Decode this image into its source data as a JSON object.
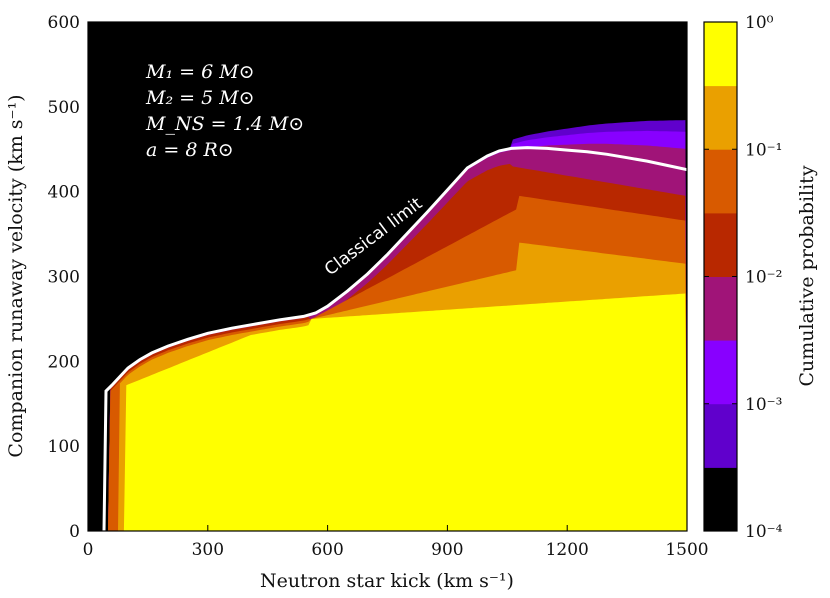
{
  "chart_data": {
    "type": "heatmap",
    "xlabel": "Neutron star kick (km s⁻¹)",
    "ylabel": "Companion runaway velocity (km s⁻¹)",
    "xlim": [
      0,
      1500
    ],
    "ylim": [
      0,
      600
    ],
    "x_ticks": [
      0,
      300,
      600,
      900,
      1200,
      1500
    ],
    "y_ticks": [
      0,
      100,
      200,
      300,
      400,
      500,
      600
    ],
    "annotations": [
      "M₁ = 6 M⊙",
      "M₂ = 5 M⊙",
      "M_NS = 1.4 M⊙",
      "a = 8 R⊙"
    ],
    "curve_label": "Classical limit",
    "classical_limit": {
      "x": [
        40,
        45,
        60,
        80,
        100,
        130,
        160,
        200,
        250,
        300,
        360,
        420,
        480,
        540,
        570,
        600,
        650,
        700,
        750,
        800,
        850,
        900,
        950,
        1000,
        1030,
        1060,
        1100,
        1150,
        1200,
        1250,
        1300,
        1350,
        1400,
        1450,
        1500
      ],
      "y": [
        0,
        165,
        172,
        182,
        192,
        202,
        210,
        218,
        226,
        233,
        239,
        244,
        249,
        253,
        257,
        265,
        283,
        303,
        326,
        351,
        376,
        402,
        428,
        442,
        448,
        451,
        452,
        451,
        449,
        447,
        444,
        440,
        436,
        431,
        426
      ]
    },
    "colorbar": {
      "label": "Cumulative probability",
      "scale": "log",
      "range": [
        0.0001,
        1
      ],
      "tick_labels": [
        "10⁰",
        "10⁻¹",
        "10⁻²",
        "10⁻³",
        "10⁻⁴"
      ],
      "tick_values": [
        1,
        0.1,
        0.01,
        0.001,
        0.0001
      ],
      "levels": [
        "#000000",
        "#6000cc",
        "#8800ff",
        "#a01478",
        "#b82800",
        "#d85a00",
        "#eaa000",
        "#ffff00"
      ]
    },
    "regions": {
      "background": "#000000",
      "note": "filled contour bands beneath the classical limit"
    }
  }
}
